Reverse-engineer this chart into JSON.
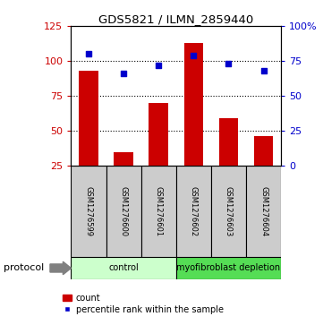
{
  "title": "GDS5821 / ILMN_2859440",
  "samples": [
    "GSM1276599",
    "GSM1276600",
    "GSM1276601",
    "GSM1276602",
    "GSM1276603",
    "GSM1276604"
  ],
  "bar_values": [
    93,
    35,
    70,
    113,
    59,
    46
  ],
  "percentile_values": [
    80,
    66,
    72,
    79,
    73,
    68
  ],
  "left_ylim": [
    25,
    125
  ],
  "left_yticks": [
    25,
    50,
    75,
    100,
    125
  ],
  "right_ylim": [
    0,
    100
  ],
  "right_yticks": [
    0,
    25,
    50,
    75,
    100
  ],
  "right_yticklabels": [
    "0",
    "25",
    "50",
    "75",
    "100%"
  ],
  "bar_color": "#cc0000",
  "dot_color": "#0000cc",
  "hline_values": [
    50,
    75,
    100
  ],
  "groups": [
    {
      "label": "control",
      "indices": [
        0,
        1,
        2
      ],
      "color": "#ccffcc"
    },
    {
      "label": "myofibroblast depletion",
      "indices": [
        3,
        4,
        5
      ],
      "color": "#55dd55"
    }
  ],
  "protocol_label": "protocol",
  "legend_bar_label": "count",
  "legend_dot_label": "percentile rank within the sample",
  "sample_box_color": "#cccccc",
  "left_tick_color": "#cc0000",
  "right_tick_color": "#0000cc",
  "figsize": [
    3.61,
    3.63
  ],
  "dpi": 100
}
